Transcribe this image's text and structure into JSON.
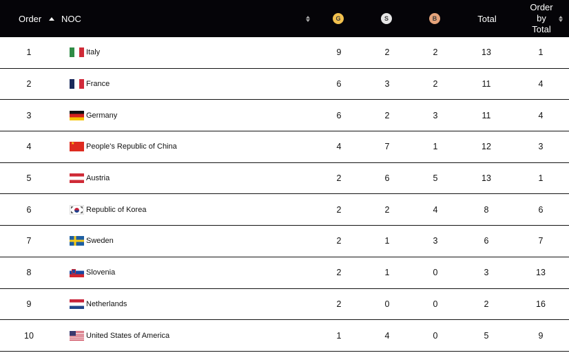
{
  "header": {
    "order_label": "Order",
    "noc_label": "NOC",
    "gold_label": "G",
    "silver_label": "S",
    "bronze_label": "B",
    "total_label": "Total",
    "order_by_total_line1": "Order",
    "order_by_total_line2": "by",
    "order_by_total_line3": "Total",
    "colors": {
      "background": "#050408",
      "gold": "#f2c14e",
      "silver": "#e6e6e6",
      "bronze": "#e5a37a"
    }
  },
  "rows": [
    {
      "order": "1",
      "noc": "Italy",
      "flag": "italy-flag",
      "gold": "9",
      "silver": "2",
      "bronze": "2",
      "total": "13",
      "order_by_total": "1"
    },
    {
      "order": "2",
      "noc": "France",
      "flag": "france-flag",
      "gold": "6",
      "silver": "3",
      "bronze": "2",
      "total": "11",
      "order_by_total": "4"
    },
    {
      "order": "3",
      "noc": "Germany",
      "flag": "germany-flag",
      "gold": "6",
      "silver": "2",
      "bronze": "3",
      "total": "11",
      "order_by_total": "4"
    },
    {
      "order": "4",
      "noc": "People's Republic of China",
      "flag": "china-flag",
      "gold": "4",
      "silver": "7",
      "bronze": "1",
      "total": "12",
      "order_by_total": "3"
    },
    {
      "order": "5",
      "noc": "Austria",
      "flag": "austria-flag",
      "gold": "2",
      "silver": "6",
      "bronze": "5",
      "total": "13",
      "order_by_total": "1"
    },
    {
      "order": "6",
      "noc": "Republic of Korea",
      "flag": "korea-flag",
      "gold": "2",
      "silver": "2",
      "bronze": "4",
      "total": "8",
      "order_by_total": "6"
    },
    {
      "order": "7",
      "noc": "Sweden",
      "flag": "sweden-flag",
      "gold": "2",
      "silver": "1",
      "bronze": "3",
      "total": "6",
      "order_by_total": "7"
    },
    {
      "order": "8",
      "noc": "Slovenia",
      "flag": "slovenia-flag",
      "gold": "2",
      "silver": "1",
      "bronze": "0",
      "total": "3",
      "order_by_total": "13"
    },
    {
      "order": "9",
      "noc": "Netherlands",
      "flag": "netherlands-flag",
      "gold": "2",
      "silver": "0",
      "bronze": "0",
      "total": "2",
      "order_by_total": "16"
    },
    {
      "order": "10",
      "noc": "United States of America",
      "flag": "usa-flag",
      "gold": "1",
      "silver": "4",
      "bronze": "0",
      "total": "5",
      "order_by_total": "9"
    }
  ]
}
